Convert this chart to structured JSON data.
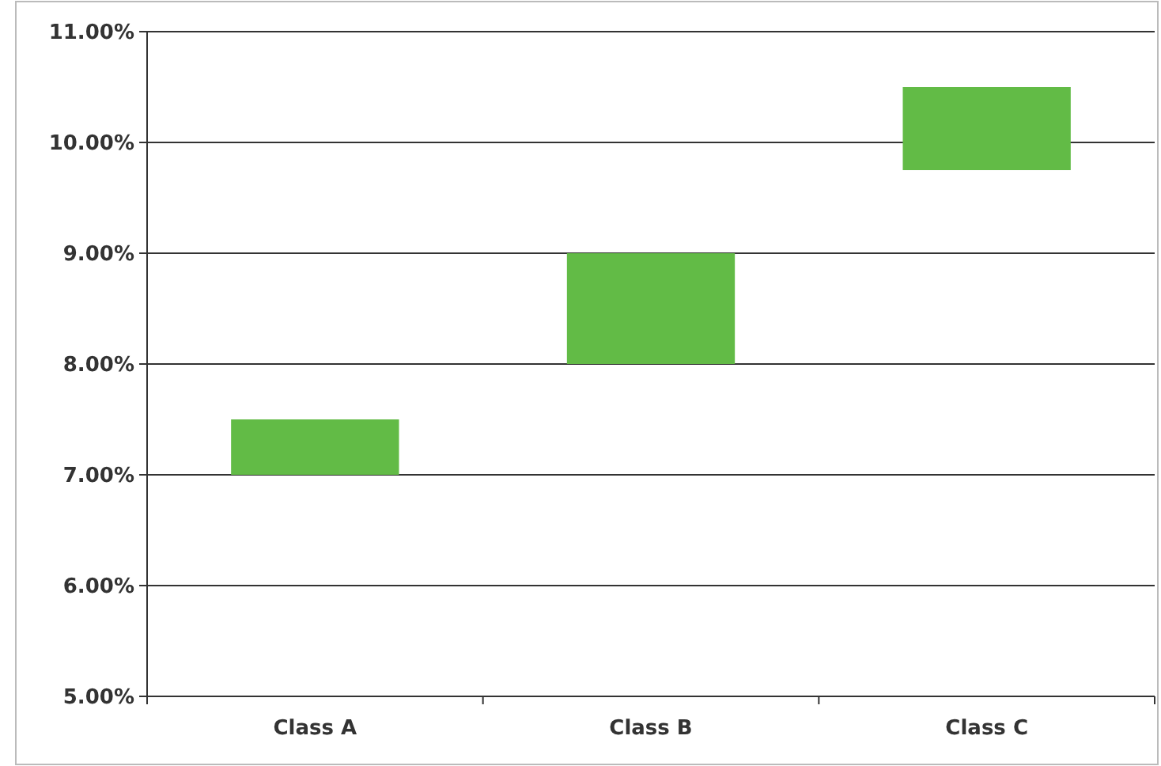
{
  "chart_data": {
    "type": "bar",
    "categories": [
      "Class A",
      "Class B",
      "Class C"
    ],
    "values": [
      0.5,
      1,
      0.75
    ],
    "base": [
      7,
      8,
      9.75
    ],
    "color": "#62bb46",
    "ylim": [
      5,
      11
    ],
    "yticks": [
      {
        "value": 5,
        "label": "5.00%"
      },
      {
        "value": 6,
        "label": "6.00%"
      },
      {
        "value": 7,
        "label": "7.00%"
      },
      {
        "value": 8,
        "label": "8.00%"
      },
      {
        "value": 9,
        "label": "9.00%"
      },
      {
        "value": 10,
        "label": "10.00%"
      },
      {
        "value": 11,
        "label": "11.00%"
      }
    ],
    "grid": "y"
  }
}
